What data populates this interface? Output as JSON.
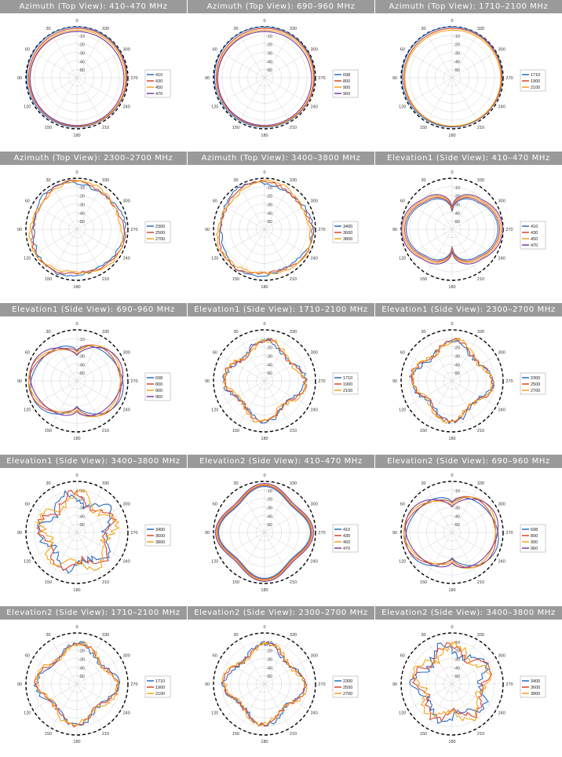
{
  "colors": {
    "title_bg": "#9a9a9a",
    "s1": "#2b6cc2",
    "s2": "#d9462c",
    "s3": "#f2a31b",
    "s4": "#7b3ba0",
    "reference": "#000000",
    "grid": "#d3d3d3"
  },
  "r_ticks": [
    "-10",
    "-20",
    "-30",
    "-40",
    "-50"
  ],
  "angle_labels": [
    "0",
    "30",
    "60",
    "90",
    "120",
    "150",
    "180",
    "210",
    "240",
    "270",
    "300",
    "330"
  ],
  "chart_data": [
    {
      "type": "polar",
      "title": "Azimuth (Top View): 410–470 MHz",
      "legend": [
        "410",
        "430",
        "450",
        "470"
      ],
      "shape": "omni",
      "rlim": [
        -60,
        0
      ]
    },
    {
      "type": "polar",
      "title": "Azimuth (Top View): 690–960 MHz",
      "legend": [
        "698",
        "800",
        "900",
        "960"
      ],
      "shape": "omni",
      "rlim": [
        -60,
        0
      ]
    },
    {
      "type": "polar",
      "title": "Azimuth (Top View): 1710–2100 MHz",
      "legend": [
        "1710",
        "1900",
        "2100"
      ],
      "shape": "omni",
      "rlim": [
        -60,
        0
      ]
    },
    {
      "type": "polar",
      "title": "Azimuth (Top View): 2300–2700 MHz",
      "legend": [
        "2300",
        "2500",
        "2700"
      ],
      "shape": "omni_rough",
      "rlim": [
        -60,
        0
      ]
    },
    {
      "type": "polar",
      "title": "Azimuth (Top View): 3400–3800 MHz",
      "legend": [
        "3400",
        "3600",
        "3800"
      ],
      "shape": "omni_rough",
      "rlim": [
        -60,
        0
      ]
    },
    {
      "type": "polar",
      "title": "Elevation1 (Side View): 410–470 MHz",
      "legend": [
        "410",
        "430",
        "450",
        "470"
      ],
      "shape": "dipole_low",
      "rlim": [
        -60,
        0
      ]
    },
    {
      "type": "polar",
      "title": "Elevation1 (Side View): 690–960 MHz",
      "legend": [
        "698",
        "800",
        "900",
        "960"
      ],
      "shape": "dipole_mid",
      "rlim": [
        -60,
        0
      ]
    },
    {
      "type": "polar",
      "title": "Elevation1 (Side View): 1710–2100 MHz",
      "legend": [
        "1710",
        "1900",
        "2100"
      ],
      "shape": "lobed",
      "rlim": [
        -60,
        0
      ]
    },
    {
      "type": "polar",
      "title": "Elevation1 (Side View): 2300–2700 MHz",
      "legend": [
        "2300",
        "2500",
        "2700"
      ],
      "shape": "lobed",
      "rlim": [
        -60,
        0
      ]
    },
    {
      "type": "polar",
      "title": "Elevation1 (Side View): 3400–3800 MHz",
      "legend": [
        "3400",
        "3600",
        "3800"
      ],
      "shape": "lobed_rough",
      "rlim": [
        -60,
        0
      ]
    },
    {
      "type": "polar",
      "title": "Elevation2 (Side View): 410–470 MHz",
      "legend": [
        "410",
        "430",
        "450",
        "470"
      ],
      "shape": "round_lobed",
      "rlim": [
        -60,
        0
      ]
    },
    {
      "type": "polar",
      "title": "Elevation2 (Side View): 690–960 MHz",
      "legend": [
        "698",
        "800",
        "900",
        "960"
      ],
      "shape": "dipole_mid",
      "rlim": [
        -60,
        0
      ]
    },
    {
      "type": "polar",
      "title": "Elevation2 (Side View): 1710–2100 MHz",
      "legend": [
        "1710",
        "1900",
        "2100"
      ],
      "shape": "lobed",
      "rlim": [
        -60,
        0
      ]
    },
    {
      "type": "polar",
      "title": "Elevation2 (Side View): 2300–2700 MHz",
      "legend": [
        "2300",
        "2500",
        "2700"
      ],
      "shape": "lobed",
      "rlim": [
        -60,
        0
      ]
    },
    {
      "type": "polar",
      "title": "Elevation2 (Side View): 3400–3800 MHz",
      "legend": [
        "3400",
        "3600",
        "3800"
      ],
      "shape": "lobed_rough",
      "rlim": [
        -60,
        0
      ]
    }
  ]
}
